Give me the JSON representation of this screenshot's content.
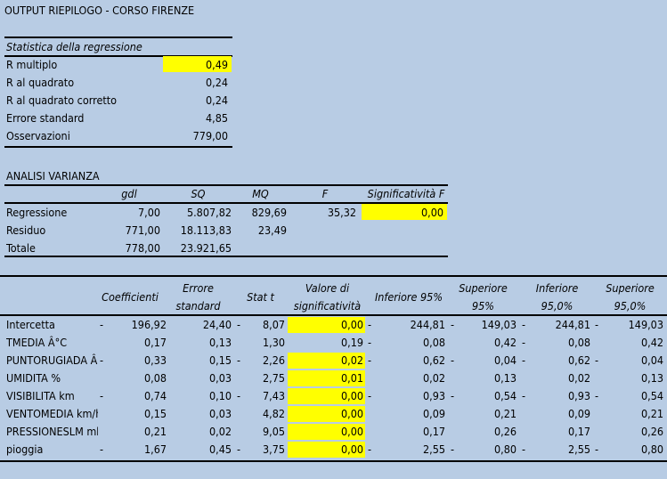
{
  "title": "OUTPUT RIEPILOGO - CORSO FIRENZE",
  "regression_stats": {
    "header": "Statistica della regressione",
    "rows": [
      {
        "label": "R multiplo",
        "value": "0,49"
      },
      {
        "label": "R al quadrato",
        "value": "0,24"
      },
      {
        "label": "R al quadrato corretto",
        "value": "0,24"
      },
      {
        "label": "Errore standard",
        "value": "4,85"
      },
      {
        "label": "Osservazioni",
        "value": "779,00"
      }
    ]
  },
  "anova": {
    "header": "ANALISI VARIANZA",
    "columns": [
      "gdl",
      "SQ",
      "MQ",
      "F",
      "Significatività F"
    ],
    "rows": [
      {
        "label": "Regressione",
        "gdl": "7,00",
        "sq": "5.807,82",
        "mq": "829,69",
        "f": "35,32",
        "sigf": "0,00"
      },
      {
        "label": "Residuo",
        "gdl": "771,00",
        "sq": "18.113,83",
        "mq": "23,49",
        "f": "",
        "sigf": ""
      },
      {
        "label": "Totale",
        "gdl": "778,00",
        "sq": "23.921,65",
        "mq": "",
        "f": "",
        "sigf": ""
      }
    ]
  },
  "coefficients": {
    "headers": {
      "coef": "Coefficienti",
      "se1": "Errore",
      "se2": "standard",
      "t": "Stat t",
      "p1": "Valore di",
      "p2": "significatività",
      "inf": "Inferiore 95%",
      "sup1": "Superiore",
      "sup2": "95%",
      "inf2a": "Inferiore",
      "inf2b": "95,0%",
      "sup2a": "Superiore",
      "sup2b": "95,0%"
    },
    "rows": [
      {
        "label": "Intercetta",
        "c_neg": "-",
        "coef": "196,92",
        "se": "24,40",
        "t_neg": "-",
        "t": "8,07",
        "p": "0,00",
        "i_neg": "-",
        "inf": "244,81",
        "s_neg": "-",
        "sup": "149,03",
        "i2_neg": "-",
        "inf2": "244,81",
        "s2_neg": "-",
        "sup2": "149,03",
        "p_highlight": true
      },
      {
        "label": "TMEDIA Â°C",
        "c_neg": "",
        "coef": "0,17",
        "se": "0,13",
        "t_neg": "",
        "t": "1,30",
        "p": "0,19",
        "i_neg": "-",
        "inf": "0,08",
        "s_neg": "",
        "sup": "0,42",
        "i2_neg": "-",
        "inf2": "0,08",
        "s2_neg": "",
        "sup2": "0,42",
        "p_highlight": false
      },
      {
        "label": "PUNTORUGIADA Â°",
        "c_neg": "-",
        "coef": "0,33",
        "se": "0,15",
        "t_neg": "-",
        "t": "2,26",
        "p": "0,02",
        "i_neg": "-",
        "inf": "0,62",
        "s_neg": "-",
        "sup": "0,04",
        "i2_neg": "-",
        "inf2": "0,62",
        "s2_neg": "-",
        "sup2": "0,04",
        "p_highlight": true
      },
      {
        "label": "UMIDITA %",
        "c_neg": "",
        "coef": "0,08",
        "se": "0,03",
        "t_neg": "",
        "t": "2,75",
        "p": "0,01",
        "i_neg": "",
        "inf": "0,02",
        "s_neg": "",
        "sup": "0,13",
        "i2_neg": "",
        "inf2": "0,02",
        "s2_neg": "",
        "sup2": "0,13",
        "p_highlight": true
      },
      {
        "label": "VISIBILITA km",
        "c_neg": "-",
        "coef": "0,74",
        "se": "0,10",
        "t_neg": "-",
        "t": "7,43",
        "p": "0,00",
        "i_neg": "-",
        "inf": "0,93",
        "s_neg": "-",
        "sup": "0,54",
        "i2_neg": "-",
        "inf2": "0,93",
        "s2_neg": "-",
        "sup2": "0,54",
        "p_highlight": true
      },
      {
        "label": "VENTOMEDIA km/h",
        "c_neg": "",
        "coef": "0,15",
        "se": "0,03",
        "t_neg": "",
        "t": "4,82",
        "p": "0,00",
        "i_neg": "",
        "inf": "0,09",
        "s_neg": "",
        "sup": "0,21",
        "i2_neg": "",
        "inf2": "0,09",
        "s2_neg": "",
        "sup2": "0,21",
        "p_highlight": true
      },
      {
        "label": "PRESSIONESLM mb",
        "c_neg": "",
        "coef": "0,21",
        "se": "0,02",
        "t_neg": "",
        "t": "9,05",
        "p": "0,00",
        "i_neg": "",
        "inf": "0,17",
        "s_neg": "",
        "sup": "0,26",
        "i2_neg": "",
        "inf2": "0,17",
        "s2_neg": "",
        "sup2": "0,26",
        "p_highlight": true
      },
      {
        "label": "pioggia",
        "c_neg": "-",
        "coef": "1,67",
        "se": "0,45",
        "t_neg": "-",
        "t": "3,75",
        "p": "0,00",
        "i_neg": "-",
        "inf": "2,55",
        "s_neg": "-",
        "sup": "0,80",
        "i2_neg": "-",
        "inf2": "2,55",
        "s2_neg": "-",
        "sup2": "0,80",
        "p_highlight": true
      }
    ]
  },
  "colors": {
    "background": "#b8cce4",
    "highlight": "#ffff00"
  }
}
